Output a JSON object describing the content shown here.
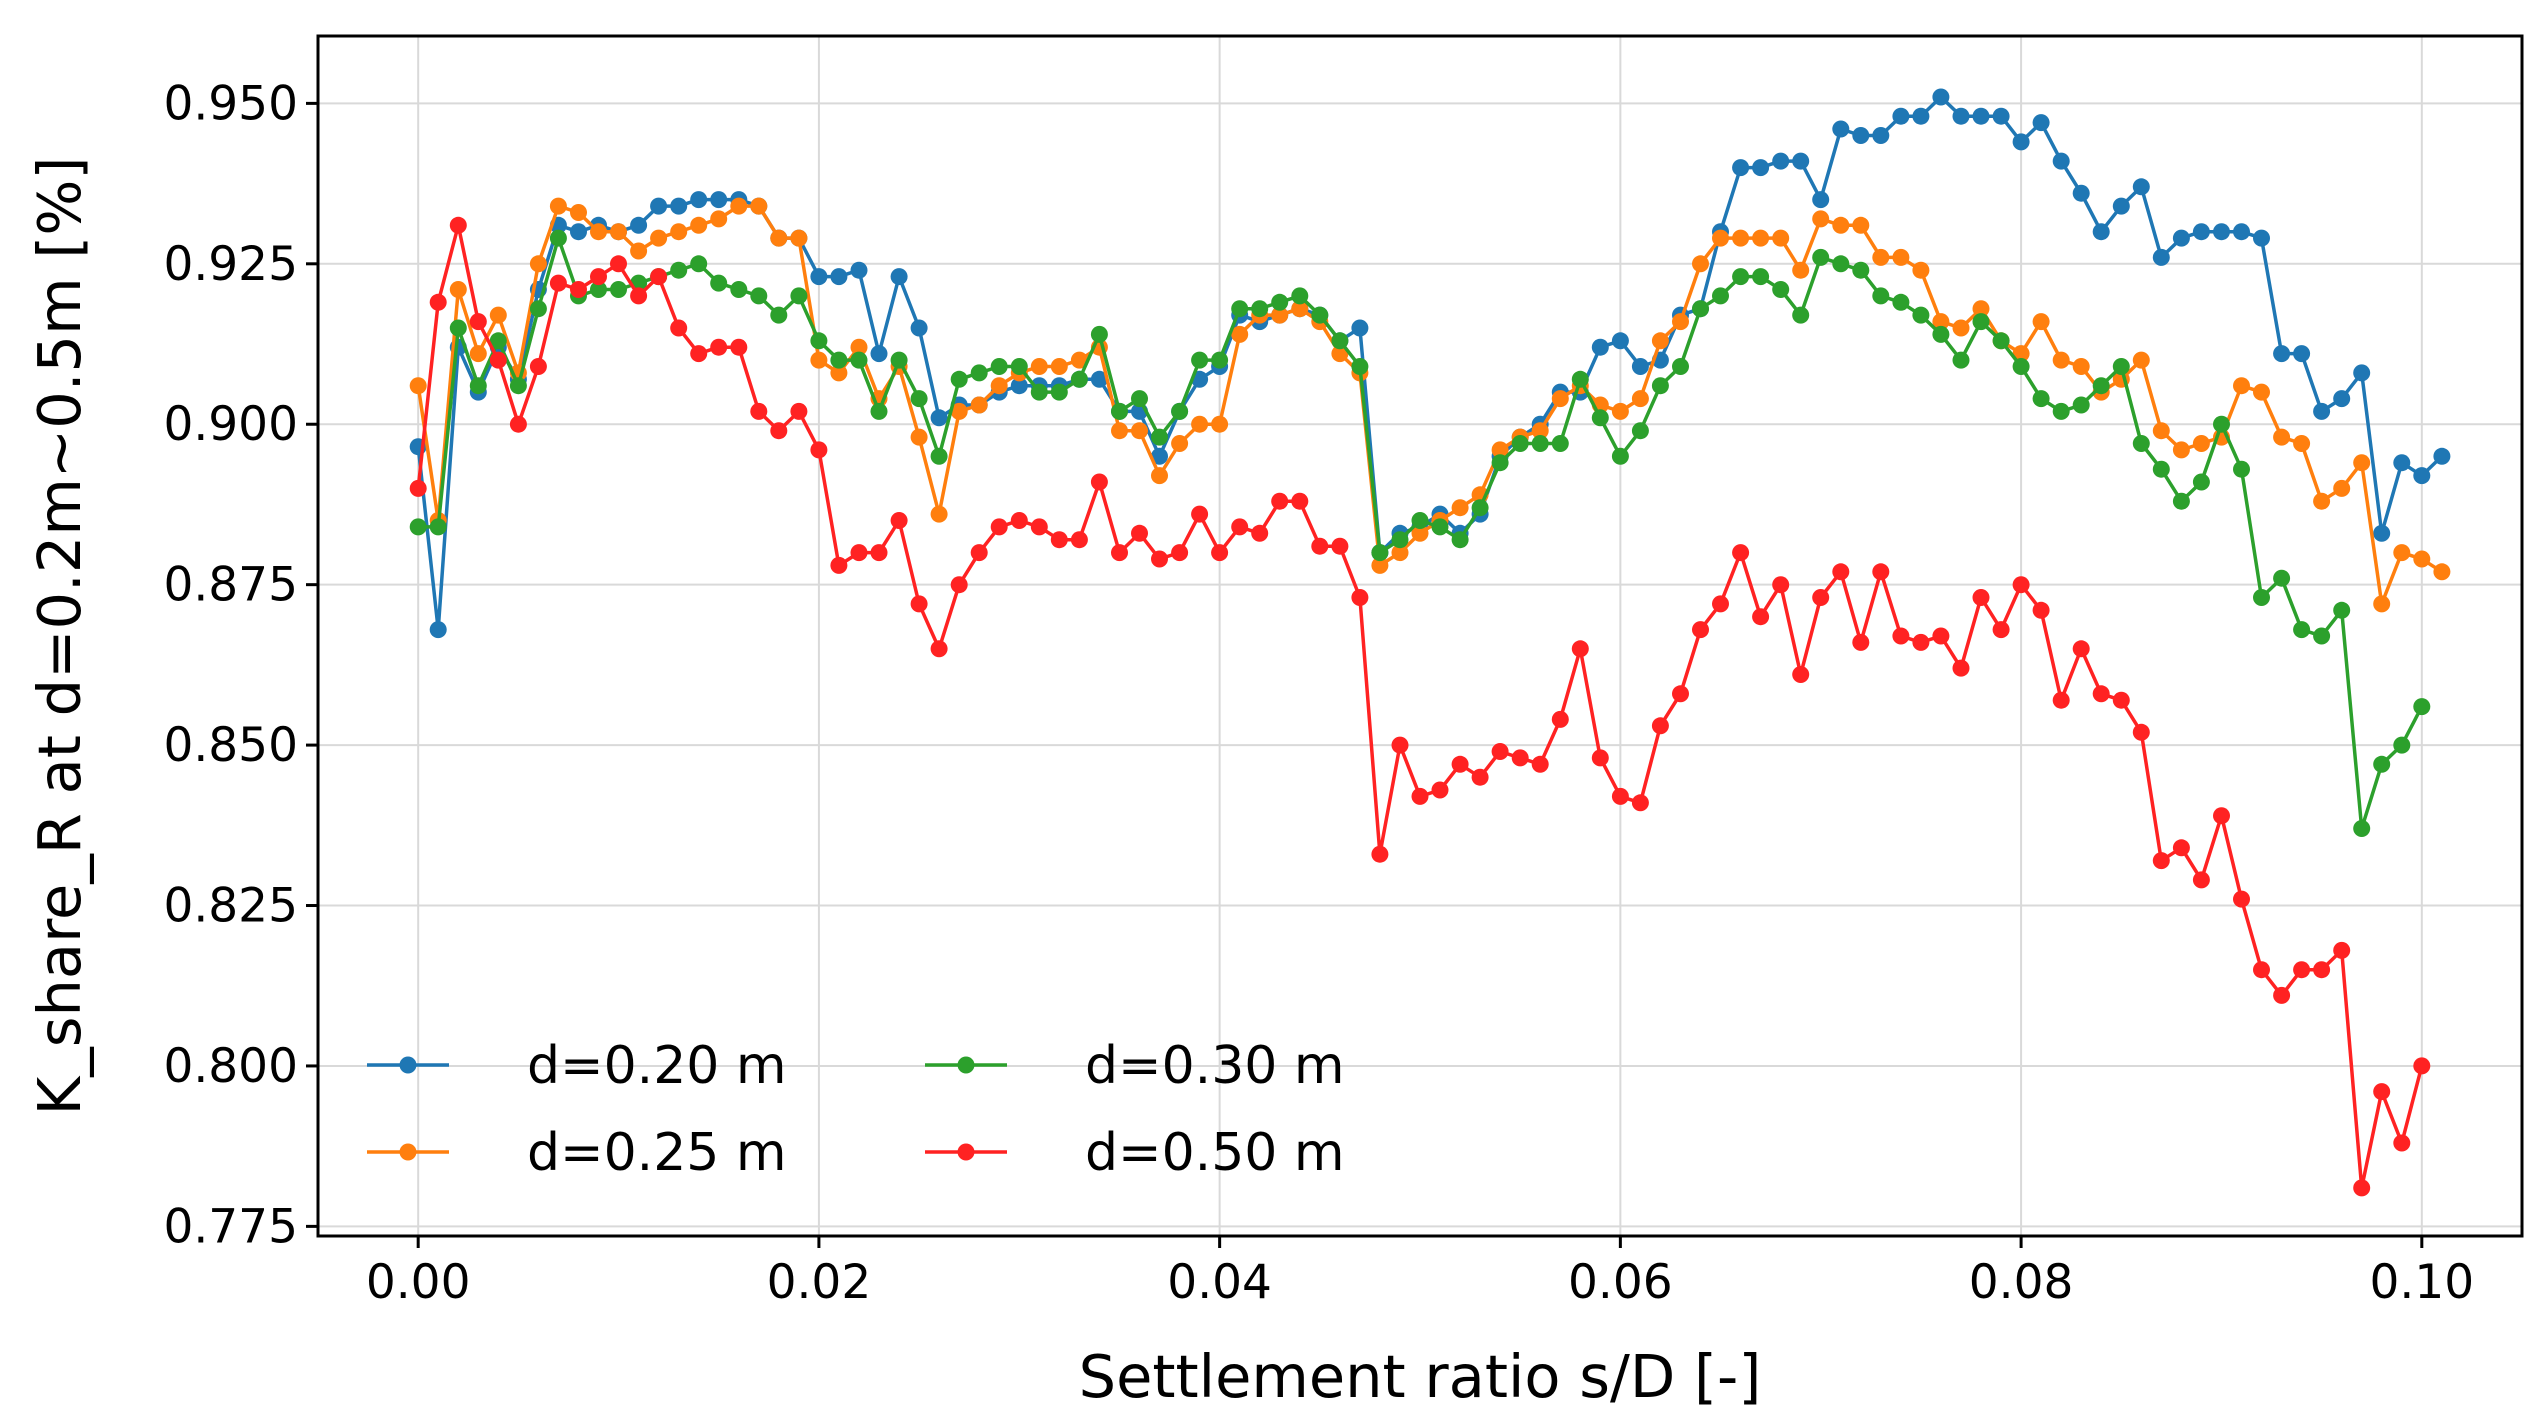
{
  "chart_data": {
    "type": "line",
    "xlabel": "Settlement ratio s/D [-]",
    "ylabel": "K_share_R at d=0.2m~0.5m [%]",
    "xlim": [
      -0.005,
      0.105
    ],
    "ylim": [
      0.7735,
      0.9605
    ],
    "xticks": [
      0.0,
      0.02,
      0.04,
      0.06,
      0.08,
      0.1
    ],
    "xtick_labels": [
      "0.00",
      "0.02",
      "0.04",
      "0.06",
      "0.08",
      "0.10"
    ],
    "yticks": [
      0.775,
      0.8,
      0.825,
      0.85,
      0.875,
      0.9,
      0.925,
      0.95
    ],
    "ytick_labels": [
      "0.775",
      "0.800",
      "0.825",
      "0.850",
      "0.875",
      "0.900",
      "0.925",
      "0.950"
    ],
    "grid": true,
    "legend_position": "lower-left",
    "legend_columns": 2,
    "x_step": 0.001,
    "series": [
      {
        "name": "d=0.20 m",
        "color": "#1f77b4",
        "values": [
          0.8965,
          0.868,
          0.912,
          0.905,
          0.912,
          0.907,
          0.921,
          0.931,
          0.93,
          0.931,
          0.93,
          0.931,
          0.934,
          0.934,
          0.935,
          0.935,
          0.935,
          0.934,
          0.929,
          0.929,
          0.923,
          0.923,
          0.924,
          0.911,
          0.923,
          0.915,
          0.901,
          0.903,
          0.903,
          0.905,
          0.906,
          0.906,
          0.906,
          0.907,
          0.907,
          0.902,
          0.902,
          0.895,
          0.902,
          0.907,
          0.909,
          0.917,
          0.916,
          0.917,
          0.918,
          0.917,
          0.913,
          0.915,
          0.88,
          0.883,
          0.884,
          0.886,
          0.883,
          0.886,
          0.895,
          0.898,
          0.9,
          0.905,
          0.905,
          0.912,
          0.913,
          0.909,
          0.91,
          0.917,
          0.918,
          0.93,
          0.94,
          0.94,
          0.941,
          0.941,
          0.935,
          0.946,
          0.945,
          0.945,
          0.948,
          0.948,
          0.951,
          0.948,
          0.948,
          0.948,
          0.944,
          0.947,
          0.941,
          0.936,
          0.93,
          0.934,
          0.937,
          0.926,
          0.929,
          0.93,
          0.93,
          0.93,
          0.929,
          0.911,
          0.911,
          0.902,
          0.904,
          0.908,
          0.883,
          0.894,
          0.892,
          0.895
        ]
      },
      {
        "name": "d=0.25 m",
        "color": "#ff7f0e",
        "values": [
          0.906,
          0.885,
          0.921,
          0.911,
          0.917,
          0.908,
          0.925,
          0.934,
          0.933,
          0.93,
          0.93,
          0.927,
          0.929,
          0.93,
          0.931,
          0.932,
          0.934,
          0.934,
          0.929,
          0.929,
          0.91,
          0.908,
          0.912,
          0.904,
          0.909,
          0.898,
          0.886,
          0.902,
          0.903,
          0.906,
          0.908,
          0.909,
          0.909,
          0.91,
          0.912,
          0.899,
          0.899,
          0.892,
          0.897,
          0.9,
          0.9,
          0.914,
          0.917,
          0.917,
          0.918,
          0.916,
          0.911,
          0.908,
          0.878,
          0.88,
          0.883,
          0.885,
          0.887,
          0.889,
          0.896,
          0.898,
          0.899,
          0.904,
          0.906,
          0.903,
          0.902,
          0.904,
          0.913,
          0.916,
          0.925,
          0.929,
          0.929,
          0.929,
          0.929,
          0.924,
          0.932,
          0.931,
          0.931,
          0.926,
          0.926,
          0.924,
          0.916,
          0.915,
          0.918,
          0.913,
          0.911,
          0.916,
          0.91,
          0.909,
          0.905,
          0.907,
          0.91,
          0.899,
          0.896,
          0.897,
          0.898,
          0.906,
          0.905,
          0.898,
          0.897,
          0.888,
          0.89,
          0.894,
          0.872,
          0.88,
          0.879,
          0.877
        ]
      },
      {
        "name": "d=0.30 m",
        "color": "#2ca02c",
        "values": [
          0.884,
          0.884,
          0.915,
          0.906,
          0.913,
          0.906,
          0.918,
          0.929,
          0.92,
          0.921,
          0.921,
          0.922,
          0.923,
          0.924,
          0.925,
          0.922,
          0.921,
          0.92,
          0.917,
          0.92,
          0.913,
          0.91,
          0.91,
          0.902,
          0.91,
          0.904,
          0.895,
          0.907,
          0.908,
          0.909,
          0.909,
          0.905,
          0.905,
          0.907,
          0.914,
          0.902,
          0.904,
          0.898,
          0.902,
          0.91,
          0.91,
          0.918,
          0.918,
          0.919,
          0.92,
          0.917,
          0.913,
          0.909,
          0.88,
          0.882,
          0.885,
          0.884,
          0.882,
          0.887,
          0.894,
          0.897,
          0.897,
          0.897,
          0.907,
          0.901,
          0.895,
          0.899,
          0.906,
          0.909,
          0.918,
          0.92,
          0.923,
          0.923,
          0.921,
          0.917,
          0.926,
          0.925,
          0.924,
          0.92,
          0.919,
          0.917,
          0.914,
          0.91,
          0.916,
          0.913,
          0.909,
          0.904,
          0.902,
          0.903,
          0.906,
          0.909,
          0.897,
          0.893,
          0.888,
          0.891,
          0.9,
          0.893,
          0.873,
          0.876,
          0.868,
          0.867,
          0.871,
          0.837,
          0.847,
          0.85,
          0.856
        ]
      },
      {
        "name": "d=0.50 m",
        "color": "#ff2222",
        "values": [
          0.89,
          0.919,
          0.931,
          0.916,
          0.91,
          0.9,
          0.909,
          0.922,
          0.921,
          0.923,
          0.925,
          0.92,
          0.923,
          0.915,
          0.911,
          0.912,
          0.912,
          0.902,
          0.899,
          0.902,
          0.896,
          0.878,
          0.88,
          0.88,
          0.885,
          0.872,
          0.865,
          0.875,
          0.88,
          0.884,
          0.885,
          0.884,
          0.882,
          0.882,
          0.891,
          0.88,
          0.883,
          0.879,
          0.88,
          0.886,
          0.88,
          0.884,
          0.883,
          0.888,
          0.888,
          0.881,
          0.881,
          0.873,
          0.833,
          0.85,
          0.842,
          0.843,
          0.847,
          0.845,
          0.849,
          0.848,
          0.847,
          0.854,
          0.865,
          0.848,
          0.842,
          0.841,
          0.853,
          0.858,
          0.868,
          0.872,
          0.88,
          0.87,
          0.875,
          0.861,
          0.873,
          0.877,
          0.866,
          0.877,
          0.867,
          0.866,
          0.867,
          0.862,
          0.873,
          0.868,
          0.875,
          0.871,
          0.857,
          0.865,
          0.858,
          0.857,
          0.852,
          0.832,
          0.834,
          0.829,
          0.839,
          0.826,
          0.815,
          0.811,
          0.815,
          0.815,
          0.818,
          0.781,
          0.796,
          0.788,
          0.8
        ]
      }
    ]
  }
}
